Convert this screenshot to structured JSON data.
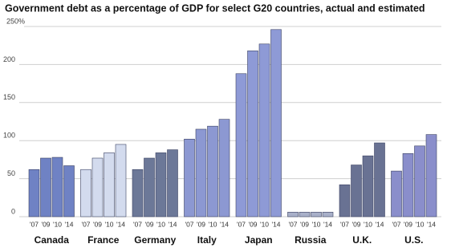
{
  "chart_data": {
    "type": "grouped_bar",
    "title": "Government debt as a percentage of GDP for select G20 countries, actual and estimated",
    "x_labels": [
      "'07",
      "'09",
      "'10",
      "'14"
    ],
    "groups": [
      {
        "name": "Canada",
        "color": "#6f82c4",
        "values": [
          62,
          77,
          78,
          67
        ]
      },
      {
        "name": "France",
        "color": "#d3dbee",
        "values": [
          62,
          77,
          84,
          95
        ]
      },
      {
        "name": "Germany",
        "color": "#6c7898",
        "values": [
          62,
          77,
          84,
          88
        ]
      },
      {
        "name": "Italy",
        "color": "#8c98d2",
        "values": [
          102,
          115,
          119,
          128
        ]
      },
      {
        "name": "Japan",
        "color": "#8e9ad6",
        "values": [
          188,
          218,
          227,
          246
        ]
      },
      {
        "name": "Russia",
        "color": "#a9b0c9",
        "values": [
          6,
          6,
          6,
          6
        ]
      },
      {
        "name": "U.K.",
        "color": "#697293",
        "values": [
          42,
          68,
          80,
          97
        ]
      },
      {
        "name": "U.S.",
        "color": "#8a8ecb",
        "values": [
          60,
          83,
          93,
          108
        ]
      }
    ],
    "ylim": [
      0,
      250
    ],
    "yticks": [
      0,
      50,
      100,
      150,
      200,
      {
        "value": 250,
        "label": "250%"
      }
    ],
    "grid": true
  }
}
